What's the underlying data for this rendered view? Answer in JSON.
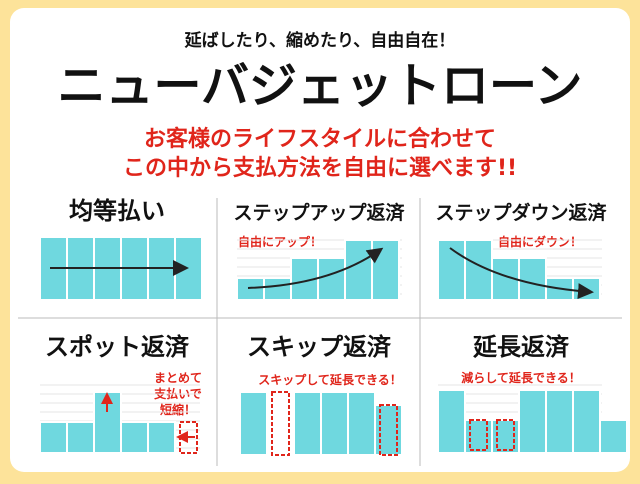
{
  "header": {
    "subtitle": "延ばしたり、縮めたり、自由自在！",
    "title": "ニューバジェットローン",
    "tagline": [
      "お客様のライフスタイルに合わせて",
      "この中から支払方法を自由に選べます!!"
    ]
  },
  "panels": [
    {
      "title": "均等払い"
    },
    {
      "title": "ステップアップ返済",
      "note": [
        "自由にアップ！"
      ]
    },
    {
      "title": "ステップダウン返済",
      "note": [
        "自由にダウン！"
      ]
    },
    {
      "title": "スポット返済",
      "note": [
        "まとめて",
        "支払いで",
        "短縮！"
      ]
    },
    {
      "title": "スキップ返済",
      "note": [
        "スキップして延長できる！"
      ]
    },
    {
      "title": "延長返済",
      "note": [
        "減らして延長できる！"
      ]
    }
  ]
}
